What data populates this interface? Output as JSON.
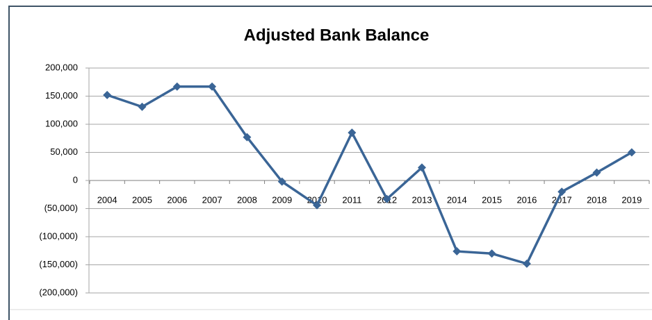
{
  "chart_data": {
    "type": "line",
    "title": "Adjusted Bank Balance",
    "categories": [
      "2004",
      "2005",
      "2006",
      "2007",
      "2008",
      "2009",
      "2010",
      "2011",
      "2012",
      "2013",
      "2014",
      "2015",
      "2016",
      "2017",
      "2018",
      "2019"
    ],
    "values": [
      152000,
      131000,
      167000,
      167000,
      77000,
      -2000,
      -44000,
      85000,
      -33000,
      23000,
      -126000,
      -130000,
      -148000,
      -20000,
      14000,
      50000
    ],
    "color": "#3a6596",
    "ylim": [
      -200000,
      200000
    ],
    "yticks": [
      {
        "value": -200000,
        "label": "(200,000)"
      },
      {
        "value": -150000,
        "label": "(150,000)"
      },
      {
        "value": -100000,
        "label": "(100,000)"
      },
      {
        "value": -50000,
        "label": "(50,000)"
      },
      0,
      {
        "value": 50000,
        "label": "50,000"
      },
      {
        "value": 100000,
        "label": "100,000"
      },
      {
        "value": 150000,
        "label": "150,000"
      },
      {
        "value": 200000,
        "label": "200,000"
      }
    ],
    "negative_tick_color": "#ff0000",
    "grid": true
  }
}
